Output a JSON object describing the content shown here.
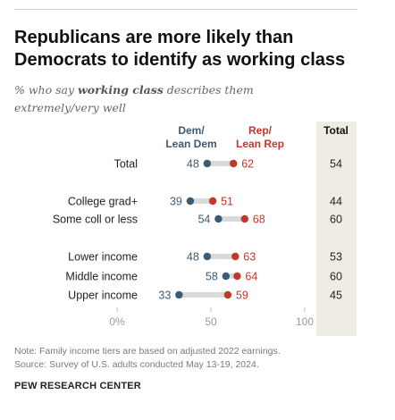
{
  "header": {
    "title_line1": "Republicans are more likely than",
    "title_line2": "Democrats to identify as working class",
    "subtitle_prefix": "% who say ",
    "subtitle_emphasis": "working class",
    "subtitle_suffix": " describes them",
    "subtitle_line2": "extremely/very well"
  },
  "footer": {
    "note": "Note: Family income tiers are based on adjusted 2022 earnings.",
    "source": "Source: Survey of U.S. adults conducted May 13-19, 2024.",
    "org": "PEW RESEARCH CENTER"
  },
  "colors": {
    "dem": "#3d5a73",
    "rep": "#c0392b",
    "connector": "#d9d9d9",
    "total_bg": "#efece3",
    "axis_text": "#9a9a9a"
  },
  "chart_data": {
    "type": "dot",
    "legend": {
      "dem_line1": "Dem/",
      "dem_line2": "Lean Dem",
      "rep_line1": "Rep/",
      "rep_line2": "Lean Rep",
      "total": "Total"
    },
    "xlim": [
      0,
      100
    ],
    "x_ticks": [
      {
        "value": 0,
        "label": "0%"
      },
      {
        "value": 50,
        "label": "50"
      },
      {
        "value": 100,
        "label": "100"
      }
    ],
    "rows": [
      {
        "label": "Total",
        "dem": 48,
        "rep": 62,
        "total": 54,
        "group": 0
      },
      {
        "label": "College grad+",
        "dem": 39,
        "rep": 51,
        "total": 44,
        "group": 1
      },
      {
        "label": "Some coll or less",
        "dem": 54,
        "rep": 68,
        "total": 60,
        "group": 1
      },
      {
        "label": "Lower income",
        "dem": 48,
        "rep": 63,
        "total": 53,
        "group": 2
      },
      {
        "label": "Middle income",
        "dem": 58,
        "rep": 64,
        "total": 60,
        "group": 2
      },
      {
        "label": "Upper income",
        "dem": 33,
        "rep": 59,
        "total": 45,
        "group": 2
      }
    ]
  }
}
